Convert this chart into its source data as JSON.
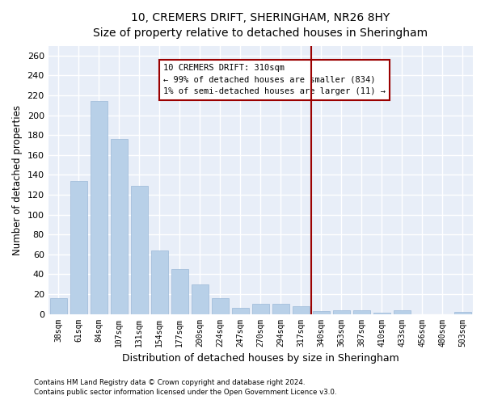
{
  "title": "10, CREMERS DRIFT, SHERINGHAM, NR26 8HY",
  "subtitle": "Size of property relative to detached houses in Sheringham",
  "xlabel": "Distribution of detached houses by size in Sheringham",
  "ylabel": "Number of detached properties",
  "bar_color": "#b8d0e8",
  "bar_edge_color": "#9ab8d8",
  "background_color": "#e8eef8",
  "grid_color": "#ffffff",
  "categories": [
    "38sqm",
    "61sqm",
    "84sqm",
    "107sqm",
    "131sqm",
    "154sqm",
    "177sqm",
    "200sqm",
    "224sqm",
    "247sqm",
    "270sqm",
    "294sqm",
    "317sqm",
    "340sqm",
    "363sqm",
    "387sqm",
    "410sqm",
    "433sqm",
    "456sqm",
    "480sqm",
    "503sqm"
  ],
  "values": [
    16,
    134,
    214,
    176,
    129,
    64,
    45,
    30,
    16,
    6,
    10,
    10,
    8,
    3,
    4,
    4,
    1,
    4,
    0,
    0,
    2
  ],
  "vline_index": 12.5,
  "vline_color": "#9b0000",
  "annotation_line1": "10 CREMERS DRIFT: 310sqm",
  "annotation_line2": "← 99% of detached houses are smaller (834)",
  "annotation_line3": "1% of semi-detached houses are larger (11) →",
  "ylim": [
    0,
    270
  ],
  "yticks": [
    0,
    20,
    40,
    60,
    80,
    100,
    120,
    140,
    160,
    180,
    200,
    220,
    240,
    260
  ],
  "footer_line1": "Contains HM Land Registry data © Crown copyright and database right 2024.",
  "footer_line2": "Contains public sector information licensed under the Open Government Licence v3.0."
}
